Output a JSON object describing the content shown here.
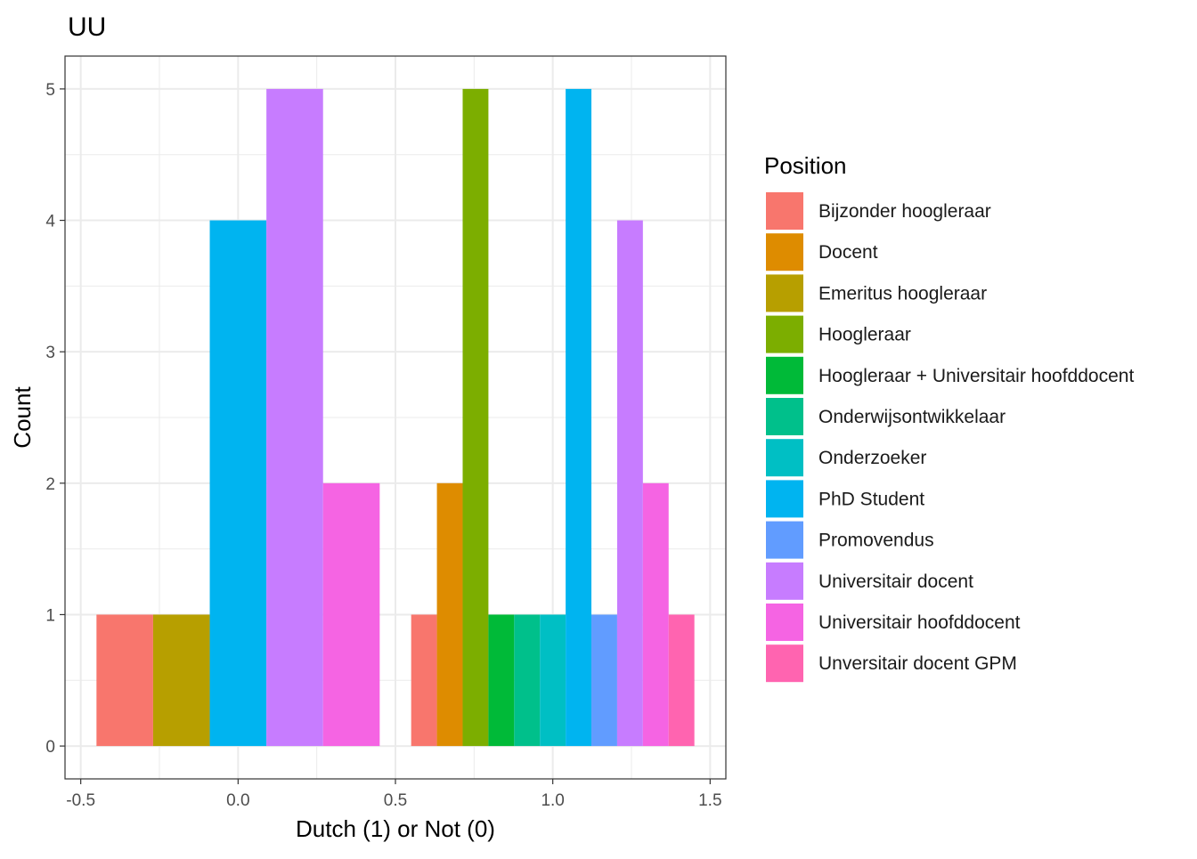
{
  "chart_data": {
    "type": "bar",
    "title": "UU",
    "xlabel": "Dutch (1) or Not (0)",
    "ylabel": "Count",
    "xlim": [
      -0.55,
      1.55
    ],
    "ylim": [
      -0.25,
      5.25
    ],
    "x_ticks": [
      -0.5,
      0.0,
      0.5,
      1.0,
      1.5
    ],
    "x_tick_labels": [
      "-0.5",
      "0.0",
      "0.5",
      "1.0",
      "1.5"
    ],
    "y_ticks": [
      0,
      1,
      2,
      3,
      4,
      5
    ],
    "y_tick_labels": [
      "0",
      "1",
      "2",
      "3",
      "4",
      "5"
    ],
    "grid": true,
    "legend": {
      "title": "Position",
      "position": "right",
      "entries": [
        {
          "name": "Bijzonder hoogleraar",
          "color": "#F8766D"
        },
        {
          "name": "Docent",
          "color": "#DE8C00"
        },
        {
          "name": "Emeritus hoogleraar",
          "color": "#B79F00"
        },
        {
          "name": "Hoogleraar",
          "color": "#7CAE00"
        },
        {
          "name": "Hoogleraar + Universitair hoofddocent",
          "color": "#00BA38"
        },
        {
          "name": "Onderwijsontwikkelaar",
          "color": "#00C08B"
        },
        {
          "name": "Onderzoeker",
          "color": "#00BFC4"
        },
        {
          "name": "PhD Student",
          "color": "#00B4F0"
        },
        {
          "name": "Promovendus",
          "color": "#619CFF"
        },
        {
          "name": "Universitair docent",
          "color": "#C77CFF"
        },
        {
          "name": "Universitair hoofddocent",
          "color": "#F564E3"
        },
        {
          "name": "Unversitair docent GPM",
          "color": "#FF64B0"
        }
      ]
    },
    "groups": [
      {
        "x": 0,
        "bars": [
          {
            "series": "Bijzonder hoogleraar",
            "value": 1
          },
          {
            "series": "Emeritus hoogleraar",
            "value": 1
          },
          {
            "series": "PhD Student",
            "value": 4
          },
          {
            "series": "Universitair docent",
            "value": 5
          },
          {
            "series": "Universitair hoofddocent",
            "value": 2
          }
        ]
      },
      {
        "x": 1,
        "bars": [
          {
            "series": "Bijzonder hoogleraar",
            "value": 1
          },
          {
            "series": "Docent",
            "value": 2
          },
          {
            "series": "Hoogleraar",
            "value": 5
          },
          {
            "series": "Hoogleraar + Universitair hoofddocent",
            "value": 1
          },
          {
            "series": "Onderwijsontwikkelaar",
            "value": 1
          },
          {
            "series": "Onderzoeker",
            "value": 1
          },
          {
            "series": "PhD Student",
            "value": 5
          },
          {
            "series": "Promovendus",
            "value": 1
          },
          {
            "series": "Universitair docent",
            "value": 4
          },
          {
            "series": "Universitair hoofddocent",
            "value": 2
          },
          {
            "series": "Unversitair docent GPM",
            "value": 1
          }
        ]
      }
    ],
    "bar_width": 0.9
  }
}
